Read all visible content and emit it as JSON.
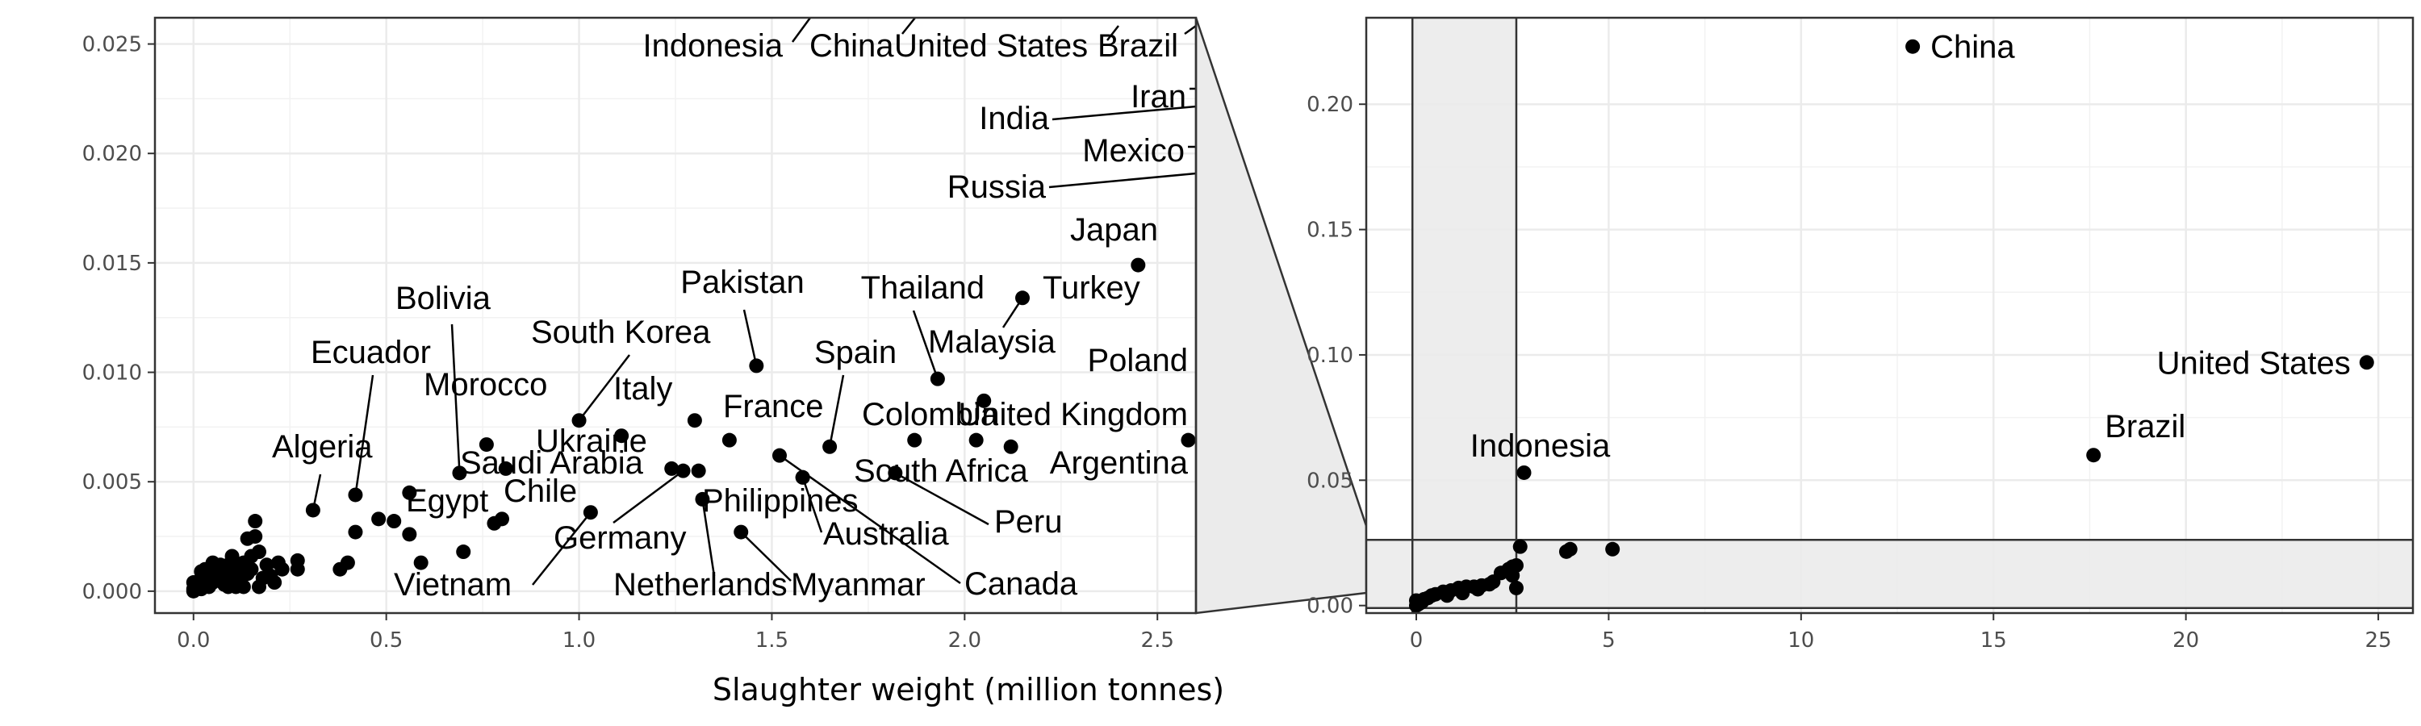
{
  "chart_data": [
    {
      "type": "scatter",
      "panel": "zoomed",
      "xlim": [
        -0.1,
        2.6
      ],
      "ylim": [
        -0.001,
        0.0262
      ],
      "x_ticks": [
        "0.0",
        "0.5",
        "1.0",
        "1.5",
        "2.0",
        "2.5"
      ],
      "y_ticks": [
        "0.000",
        "0.005",
        "0.010",
        "0.015",
        "0.020",
        "0.025"
      ],
      "x_tick_values": [
        0,
        0.5,
        1.0,
        1.5,
        2.0,
        2.5
      ],
      "y_tick_values": [
        0,
        0.005,
        0.01,
        0.015,
        0.02,
        0.025
      ],
      "grid": true,
      "labeled_points": [
        {
          "label": "Japan",
          "x": 2.45,
          "y": 0.0149
        },
        {
          "label": "Turkey",
          "x": 2.15,
          "y": 0.0134
        },
        {
          "label": "Malaysia",
          "x": 2.05,
          "y": 0.0087
        },
        {
          "label": "Thailand",
          "x": 1.93,
          "y": 0.0097
        },
        {
          "label": "Poland",
          "x": 2.58,
          "y": 0.0069
        },
        {
          "label": "United Kingdom",
          "x": 2.12,
          "y": 0.0066
        },
        {
          "label": "Colombia",
          "x": 1.87,
          "y": 0.0069
        },
        {
          "label": "Pakistan",
          "x": 1.46,
          "y": 0.0103
        },
        {
          "label": "Spain",
          "x": 1.65,
          "y": 0.0066
        },
        {
          "label": "South Africa",
          "x": 1.58,
          "y": 0.0052
        },
        {
          "label": "Peru",
          "x": 1.82,
          "y": 0.0054
        },
        {
          "label": "Argentina",
          "x": 2.03,
          "y": 0.0069
        },
        {
          "label": "Canada",
          "x": 1.52,
          "y": 0.0062
        },
        {
          "label": "Australia",
          "x": 1.58,
          "y": 0.0052
        },
        {
          "label": "France",
          "x": 1.39,
          "y": 0.0069
        },
        {
          "label": "Philippines",
          "x": 1.31,
          "y": 0.0055
        },
        {
          "label": "Myanmar",
          "x": 1.42,
          "y": 0.0027
        },
        {
          "label": "Netherlands",
          "x": 1.32,
          "y": 0.0042
        },
        {
          "label": "Italy",
          "x": 1.3,
          "y": 0.0078
        },
        {
          "label": "Ukraine",
          "x": 1.11,
          "y": 0.0071
        },
        {
          "label": "South Korea",
          "x": 1.0,
          "y": 0.0078
        },
        {
          "label": "Germany",
          "x": 1.27,
          "y": 0.0055
        },
        {
          "label": "Vietnam",
          "x": 1.03,
          "y": 0.0036
        },
        {
          "label": "Saudi Arabia",
          "x": 0.81,
          "y": 0.0056
        },
        {
          "label": "Chile",
          "x": 0.8,
          "y": 0.0033
        },
        {
          "label": "Morocco",
          "x": 0.76,
          "y": 0.0067
        },
        {
          "label": "Bolivia",
          "x": 0.69,
          "y": 0.0054
        },
        {
          "label": "Egypt",
          "x": 0.56,
          "y": 0.0045
        },
        {
          "label": "Ecuador",
          "x": 0.42,
          "y": 0.0044
        },
        {
          "label": "Algeria",
          "x": 0.31,
          "y": 0.0037
        }
      ],
      "other_points": [
        [
          0.56,
          0.0026
        ],
        [
          0.59,
          0.0013
        ],
        [
          0.7,
          0.0018
        ],
        [
          0.78,
          0.0031
        ],
        [
          0.48,
          0.0033
        ],
        [
          0.52,
          0.0032
        ],
        [
          0.42,
          0.0027
        ],
        [
          1.24,
          0.0056
        ],
        [
          0.38,
          0.001
        ],
        [
          0.4,
          0.0013
        ],
        [
          0.27,
          0.001
        ],
        [
          0.27,
          0.0014
        ],
        [
          0.23,
          0.001
        ],
        [
          0.2,
          0.0007
        ],
        [
          0.19,
          0.0012
        ],
        [
          0.16,
          0.0032
        ],
        [
          0.16,
          0.0025
        ],
        [
          0.14,
          0.0024
        ],
        [
          0.17,
          0.0018
        ],
        [
          0.15,
          0.0016
        ],
        [
          0.13,
          0.0013
        ],
        [
          0.1,
          0.0016
        ],
        [
          0.09,
          0.0012
        ],
        [
          0.07,
          0.0012
        ],
        [
          0.05,
          0.0013
        ],
        [
          0.04,
          0.0008
        ],
        [
          0.05,
          0.0004
        ],
        [
          0.03,
          0.0003
        ],
        [
          0.02,
          0.0006
        ],
        [
          0.01,
          0.0002
        ],
        [
          0.0,
          0.0001
        ],
        [
          0.0,
          0.0004
        ],
        [
          0.0,
          0.0
        ],
        [
          0.02,
          0.0001
        ],
        [
          0.04,
          0.0002
        ],
        [
          0.06,
          0.0005
        ],
        [
          0.08,
          0.0003
        ],
        [
          0.1,
          0.0006
        ],
        [
          0.12,
          0.0004
        ],
        [
          0.14,
          0.0008
        ],
        [
          0.11,
          0.0009
        ],
        [
          0.09,
          0.0002
        ],
        [
          0.06,
          0.0009
        ],
        [
          0.18,
          0.0006
        ],
        [
          0.21,
          0.0004
        ],
        [
          0.13,
          0.0002
        ],
        [
          0.15,
          0.001
        ],
        [
          0.11,
          0.0002
        ],
        [
          0.08,
          0.0008
        ],
        [
          0.02,
          0.0009
        ],
        [
          0.22,
          0.0013
        ],
        [
          0.17,
          0.0002
        ],
        [
          0.07,
          0.0006
        ],
        [
          0.03,
          0.001
        ],
        [
          0.12,
          0.0011
        ]
      ],
      "offscale_labels": [
        "Indonesia",
        "China",
        "United States",
        "Brazil",
        "Iran",
        "India",
        "Mexico",
        "Russia"
      ]
    },
    {
      "type": "scatter",
      "panel": "full",
      "xlim": [
        -1.3,
        25.9
      ],
      "ylim": [
        -0.003,
        0.2345
      ],
      "x_ticks": [
        "0",
        "5",
        "10",
        "15",
        "20",
        "25"
      ],
      "y_ticks": [
        "0.00",
        "0.05",
        "0.10",
        "0.15",
        "0.20"
      ],
      "x_tick_values": [
        0,
        5,
        10,
        15,
        20,
        25
      ],
      "y_tick_values": [
        0,
        0.05,
        0.1,
        0.15,
        0.2
      ],
      "grid": true,
      "labeled_points": [
        {
          "label": "China",
          "x": 12.9,
          "y": 0.223
        },
        {
          "label": "United States",
          "x": 24.7,
          "y": 0.097
        },
        {
          "label": "Brazil",
          "x": 17.6,
          "y": 0.06
        },
        {
          "label": "Indonesia",
          "x": 2.8,
          "y": 0.053
        }
      ],
      "other_points": [
        [
          5.1,
          0.0225
        ],
        [
          4.0,
          0.0225
        ],
        [
          3.9,
          0.0215
        ],
        [
          2.7,
          0.0235
        ],
        [
          2.6,
          0.016
        ],
        [
          2.5,
          0.0155
        ],
        [
          2.4,
          0.0145
        ],
        [
          2.2,
          0.013
        ],
        [
          2.5,
          0.012
        ],
        [
          2.6,
          0.007
        ],
        [
          2.0,
          0.0095
        ],
        [
          1.9,
          0.0085
        ],
        [
          1.7,
          0.008
        ],
        [
          1.5,
          0.0075
        ],
        [
          1.3,
          0.0075
        ],
        [
          1.1,
          0.007
        ],
        [
          0.9,
          0.006
        ],
        [
          0.7,
          0.0055
        ],
        [
          0.5,
          0.0045
        ],
        [
          0.4,
          0.004
        ],
        [
          0.3,
          0.003
        ],
        [
          0.2,
          0.0025
        ],
        [
          0.15,
          0.0015
        ],
        [
          0.1,
          0.001
        ],
        [
          0.05,
          0.0005
        ],
        [
          0.0,
          0.0
        ],
        [
          0.0,
          0.002
        ],
        [
          1.6,
          0.0065
        ],
        [
          1.2,
          0.005
        ],
        [
          0.8,
          0.004
        ]
      ],
      "highlight": {
        "xlim": [
          -0.1,
          2.6
        ],
        "ylim": [
          -0.001,
          0.0262
        ]
      }
    }
  ],
  "xlabel": "Slaughter weight (million tonnes)"
}
